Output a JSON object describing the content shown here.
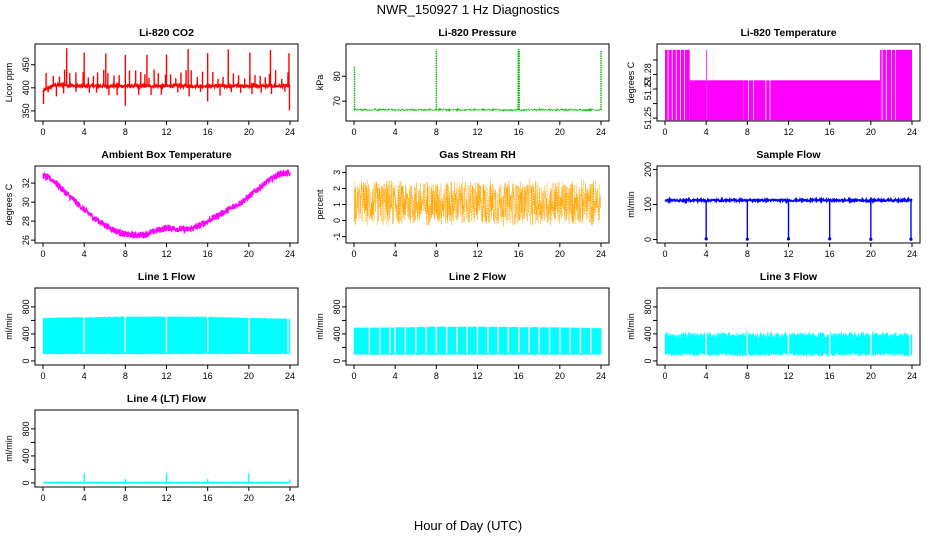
{
  "figure": {
    "title": "NWR_150927  1 Hz Diagnostics",
    "xlabel": "Hour of Day (UTC)"
  },
  "chart_data": [
    {
      "type": "line",
      "title": "Li-820 CO2",
      "ylabel": "Licor ppm",
      "color": "#ff0000",
      "xlim": [
        0,
        24
      ],
      "ylim": [
        328,
        495
      ],
      "xticks": [
        0,
        4,
        8,
        12,
        16,
        20,
        24
      ],
      "yticks": [
        350,
        400,
        450
      ],
      "baseline": [
        [
          0,
          393
        ],
        [
          1,
          405
        ],
        [
          2,
          407
        ],
        [
          3,
          404
        ],
        [
          6,
          404
        ],
        [
          12,
          404
        ],
        [
          18,
          404
        ],
        [
          24,
          404
        ]
      ],
      "noise": 3,
      "spikes": [
        {
          "x": [
            0.3,
            1,
            1.6,
            2.1,
            2.6,
            3.2,
            3.9,
            4.4,
            4.9,
            5.3,
            5.9,
            6.3,
            6.9,
            7.4,
            8.4,
            9,
            9.5,
            9.9,
            10.3,
            10.8,
            11.2,
            11.9,
            12.4,
            12.9,
            13.4,
            13.9,
            14.4,
            15,
            15.5,
            16.5,
            17,
            17.5,
            18,
            18.5,
            19,
            19.6,
            20.1,
            20.6,
            21.1,
            21.6,
            22,
            22.6,
            23.2,
            23.8
          ],
          "min": 418,
          "max": 440
        },
        {
          "x": [
            0.5,
            1.3,
            2,
            3.2,
            4.5,
            5.2,
            6.4,
            7.2,
            9.3,
            10.5,
            11.5,
            13.1,
            14.2,
            15.3,
            17.2,
            18.3,
            19.2,
            20.3,
            21.2,
            22.2,
            23.5
          ],
          "min": 380,
          "max": 392
        },
        {
          "x": [
            2.3,
            4,
            6.1,
            8,
            10.1,
            12,
            14.1,
            16,
            18,
            20.1,
            22.1,
            23.9
          ],
          "min": 470,
          "max": 488
        },
        {
          "x": [
            0.05,
            8,
            16,
            23.95
          ],
          "min": 345,
          "max": 372
        }
      ],
      "fill": false,
      "marker": false
    },
    {
      "type": "line",
      "title": "Li-820 Pressure",
      "ylabel": "kPa",
      "color": "#00bb00",
      "xlim": [
        0,
        24
      ],
      "ylim": [
        62,
        93
      ],
      "xticks": [
        0,
        4,
        8,
        12,
        16,
        20,
        24
      ],
      "yticks": [
        70,
        80
      ],
      "baseline": [
        [
          0,
          66.5
        ],
        [
          24,
          66.5
        ]
      ],
      "noise": 0.25,
      "spikes": [
        {
          "x": [
            0.05
          ],
          "min": 84,
          "max": 84
        },
        {
          "x": [
            8,
            16,
            24
          ],
          "min": 90,
          "max": 91
        },
        {
          "x": [
            15.95,
            16.05
          ],
          "min": 90,
          "max": 91
        }
      ],
      "fill": false,
      "marker": false,
      "dotted": true
    },
    {
      "type": "area",
      "title": "Li-820 Temperature",
      "ylabel": "degrees C",
      "color": "#ff00ff",
      "xlim": [
        0,
        24
      ],
      "ylim": [
        51.248,
        51.301
      ],
      "xticks": [
        0,
        4,
        8,
        12,
        16,
        20,
        24
      ],
      "yticks": [
        51.25,
        51.26,
        51.27,
        51.28,
        51.29
      ],
      "ytick_labels": [
        "51.25",
        "",
        "51.27",
        "51.28",
        ""
      ],
      "high": 51.297,
      "mid": 51.276,
      "low": 51.2485,
      "bands": [
        [
          0,
          2.4,
          "high"
        ],
        [
          2.4,
          4,
          "mid"
        ],
        [
          4,
          7.6,
          "mid"
        ],
        [
          7.6,
          20.9,
          "mid"
        ],
        [
          20.9,
          24,
          "high"
        ]
      ],
      "stripes": [
        0.3,
        0.7,
        1.1,
        1.5,
        1.9,
        4.05,
        8.1,
        8.6,
        9.8,
        10.2,
        21.1,
        21.5,
        22,
        22.4
      ],
      "fill": true,
      "marker": false
    },
    {
      "type": "line",
      "title": "Ambient Box Temperature",
      "ylabel": "degrees C",
      "color": "#ff00ff",
      "xlim": [
        0,
        24
      ],
      "ylim": [
        25.7,
        33.8
      ],
      "xticks": [
        0,
        4,
        8,
        12,
        16,
        20,
        24
      ],
      "yticks": [
        26,
        28,
        30,
        32
      ],
      "baseline": [
        [
          0,
          32.8
        ],
        [
          1,
          32.3
        ],
        [
          2,
          31.2
        ],
        [
          3,
          30.2
        ],
        [
          4,
          29.2
        ],
        [
          5,
          28.3
        ],
        [
          6,
          27.6
        ],
        [
          7,
          27
        ],
        [
          8,
          26.6
        ],
        [
          9,
          26.5
        ],
        [
          10,
          26.6
        ],
        [
          11,
          27
        ],
        [
          12,
          27.3
        ],
        [
          13,
          27.2
        ],
        [
          14,
          27.1
        ],
        [
          15,
          27.4
        ],
        [
          16,
          28
        ],
        [
          17,
          28.6
        ],
        [
          18,
          29.2
        ],
        [
          19,
          29.8
        ],
        [
          20,
          30.6
        ],
        [
          21,
          31.5
        ],
        [
          22,
          32.3
        ],
        [
          23,
          33
        ],
        [
          24,
          33
        ]
      ],
      "noise": 0.35,
      "fill": false,
      "marker": false,
      "dense": true
    },
    {
      "type": "scatter",
      "title": "Gas Stream RH",
      "ylabel": "percent",
      "color": "#ffa500",
      "xlim": [
        0,
        24
      ],
      "ylim": [
        -1.4,
        3.4
      ],
      "xticks": [
        0,
        4,
        8,
        12,
        16,
        20,
        24
      ],
      "yticks": [
        -1,
        0,
        1,
        2,
        3
      ],
      "baseline": [
        [
          0,
          1.1
        ],
        [
          24,
          1.1
        ]
      ],
      "noise": 1.55,
      "fill": false,
      "marker": true,
      "dense": true
    },
    {
      "type": "line",
      "title": "Sample Flow",
      "ylabel": "ml/min",
      "color": "#0000ff",
      "xlim": [
        0,
        24
      ],
      "ylim": [
        -10,
        210
      ],
      "xticks": [
        0,
        4,
        8,
        12,
        16,
        20,
        24
      ],
      "yticks": [
        0,
        100,
        200
      ],
      "baseline": [
        [
          0,
          112
        ],
        [
          24,
          112
        ]
      ],
      "noise": 3,
      "spikes": [
        {
          "x": [
            4,
            8,
            12,
            16,
            20,
            23.9
          ],
          "min": 0,
          "max": 2
        }
      ],
      "fill": false,
      "marker": false,
      "dip": true
    },
    {
      "type": "area",
      "title": "Line 1 Flow",
      "ylabel": "ml/min",
      "color": "#00ffff",
      "xlim": [
        0,
        24
      ],
      "ylim": [
        -60,
        1080
      ],
      "xticks": [
        0,
        4,
        8,
        12,
        16,
        20,
        24
      ],
      "yticks": [
        0,
        200,
        400,
        600,
        800
      ],
      "yhide": [
        200,
        600
      ],
      "band_top": [
        [
          0,
          640
        ],
        [
          4,
          650
        ],
        [
          8,
          660
        ],
        [
          12,
          660
        ],
        [
          16,
          655
        ],
        [
          20,
          640
        ],
        [
          24,
          630
        ]
      ],
      "band_bottom": 100,
      "gaps": [
        4,
        8,
        12,
        16,
        20,
        23.8
      ],
      "fill": true,
      "marker": false,
      "dense": true
    },
    {
      "type": "area",
      "title": "Line 2 Flow",
      "ylabel": "ml/min",
      "color": "#00ffff",
      "xlim": [
        0,
        24
      ],
      "ylim": [
        -60,
        1080
      ],
      "xticks": [
        0,
        4,
        8,
        12,
        16,
        20,
        24
      ],
      "yticks": [
        0,
        200,
        400,
        600,
        800
      ],
      "yhide": [
        200,
        600
      ],
      "band_top": [
        [
          0,
          495
        ],
        [
          4,
          500
        ],
        [
          8,
          510
        ],
        [
          12,
          510
        ],
        [
          16,
          505
        ],
        [
          20,
          500
        ],
        [
          24,
          490
        ]
      ],
      "band_bottom": 90,
      "gaps": [
        1.5,
        2.5,
        3.5,
        4,
        5,
        6,
        7,
        8,
        9,
        10,
        11,
        12,
        13,
        14,
        15,
        16,
        17,
        18,
        19,
        20,
        21,
        22,
        23
      ],
      "fill": true,
      "marker": false,
      "dense": true
    },
    {
      "type": "area",
      "title": "Line 3 Flow",
      "ylabel": "ml/min",
      "color": "#00ffff",
      "xlim": [
        0,
        24
      ],
      "ylim": [
        -60,
        1080
      ],
      "xticks": [
        0,
        4,
        8,
        12,
        16,
        20,
        24
      ],
      "yticks": [
        0,
        200,
        400,
        600,
        800
      ],
      "yhide": [
        200,
        600
      ],
      "band_top": [
        [
          0,
          400
        ],
        [
          24,
          400
        ]
      ],
      "band_bottom": 70,
      "gaps": [
        4,
        8,
        12,
        16,
        20,
        23.8
      ],
      "ragged": true,
      "fill": true,
      "marker": false,
      "dense": true
    },
    {
      "type": "line",
      "title": "Line 4 (LT) Flow",
      "ylabel": "ml/min",
      "color": "#00ffff",
      "xlim": [
        0,
        24
      ],
      "ylim": [
        -60,
        1080
      ],
      "xticks": [
        0,
        4,
        8,
        12,
        16,
        20,
        24
      ],
      "yticks": [
        0,
        200,
        400,
        600,
        800
      ],
      "yhide": [
        200,
        600
      ],
      "baseline": [
        [
          0,
          5
        ],
        [
          24,
          5
        ]
      ],
      "noise": 2,
      "spikes": [
        {
          "x": [
            4,
            12,
            20
          ],
          "min": 140,
          "max": 150
        },
        {
          "x": [
            8,
            16,
            24
          ],
          "min": 50,
          "max": 60
        }
      ],
      "fill": false,
      "marker": false
    }
  ]
}
